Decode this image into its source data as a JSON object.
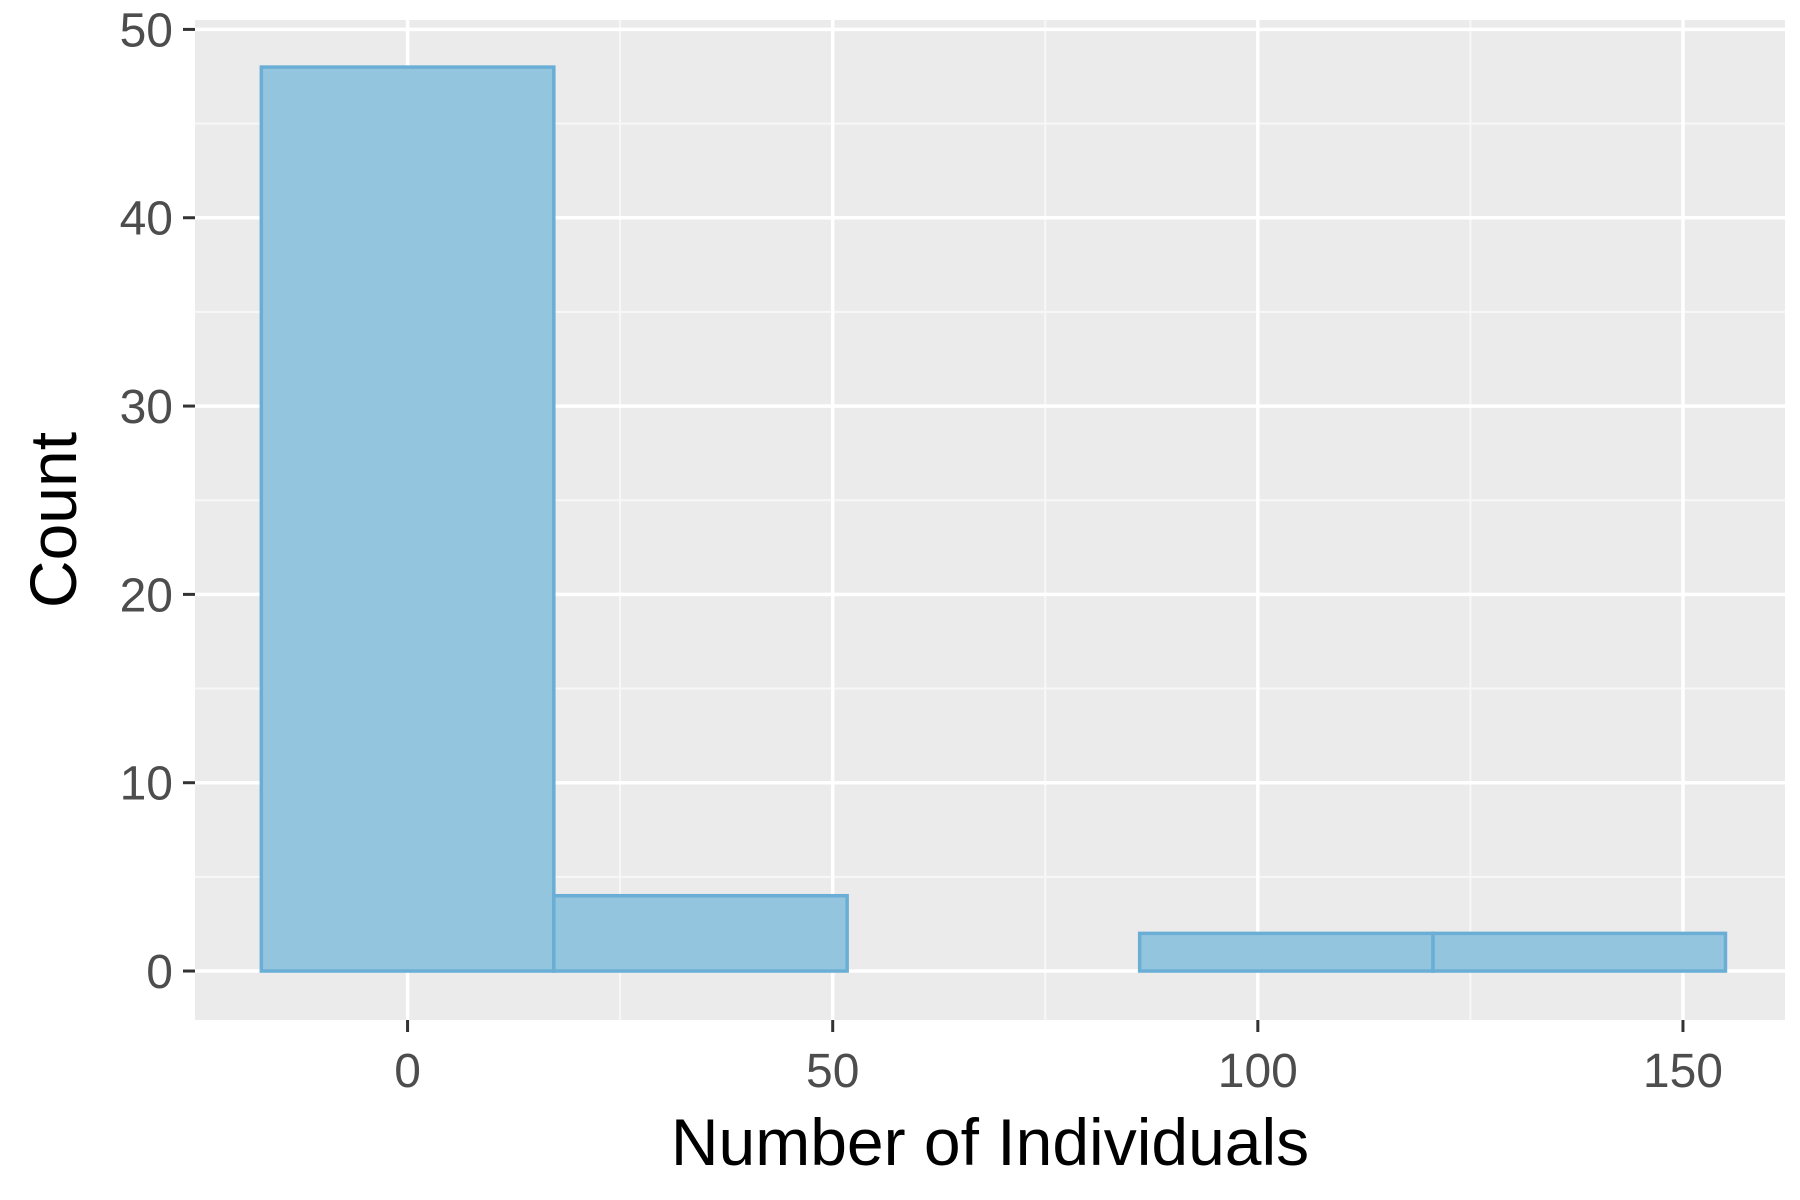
{
  "chart_data": {
    "type": "bar",
    "subtype": "histogram",
    "xlabel": "Number of Individuals",
    "ylabel": "Count",
    "xlim": [
      -25,
      162
    ],
    "ylim": [
      -2.6,
      50.5
    ],
    "x_ticks": [
      0,
      50,
      100,
      150
    ],
    "x_tick_labels": [
      "0",
      "50",
      "100",
      "150"
    ],
    "y_ticks": [
      0,
      10,
      20,
      30,
      40,
      50
    ],
    "y_tick_labels": [
      "0",
      "10",
      "20",
      "30",
      "40",
      "50"
    ],
    "bins": [
      {
        "x_start": -17.2,
        "x_end": 17.2,
        "count": 48
      },
      {
        "x_start": 17.2,
        "x_end": 51.7,
        "count": 4
      },
      {
        "x_start": 51.7,
        "x_end": 86.1,
        "count": 0
      },
      {
        "x_start": 86.1,
        "x_end": 120.6,
        "count": 2
      },
      {
        "x_start": 120.6,
        "x_end": 155.0,
        "count": 2
      }
    ],
    "grid": true,
    "legend": "none",
    "colors": {
      "panel_background": "#ebebeb",
      "grid_major": "#ffffff",
      "grid_minor": "#f7f7f7",
      "bar_fill": "#93c5de",
      "bar_outline": "#6aaed6",
      "tick_mark": "#333333",
      "tick_label": "#4d4d4d",
      "axis_title": "#000000"
    }
  }
}
